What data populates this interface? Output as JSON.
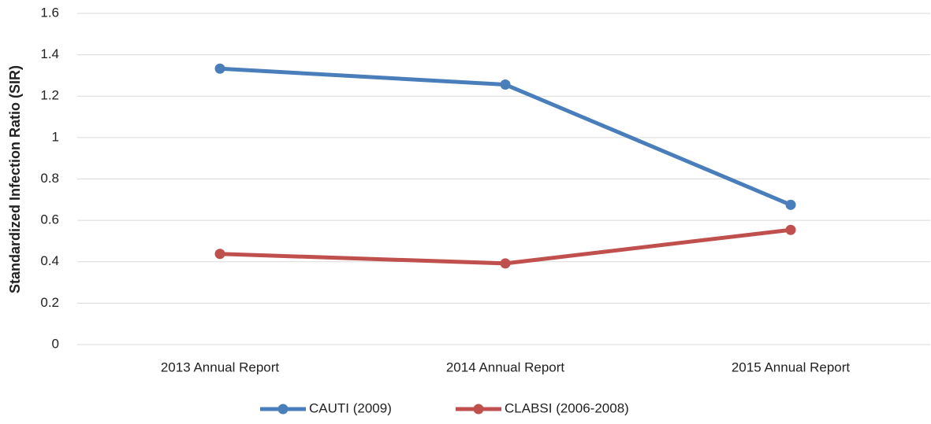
{
  "chart_data": {
    "type": "line",
    "y_axis_label": "Standardized Infection Ratio (SIR)",
    "categories": [
      "2013 Annual Report",
      "2014 Annual Report",
      "2015 Annual Report"
    ],
    "series": [
      {
        "name": "CAUTI (2009)",
        "color": "#4a7ebb",
        "values": [
          1.333,
          1.256,
          0.675
        ]
      },
      {
        "name": "CLABSI (2006-2008)",
        "color": "#c0504d",
        "values": [
          0.438,
          0.392,
          0.554
        ]
      }
    ],
    "ylim": [
      0,
      1.6
    ],
    "yticks": [
      0,
      0.2,
      0.4,
      0.6,
      0.8,
      1,
      1.2,
      1.4,
      1.6
    ],
    "grid": true,
    "legend": "bottom"
  }
}
